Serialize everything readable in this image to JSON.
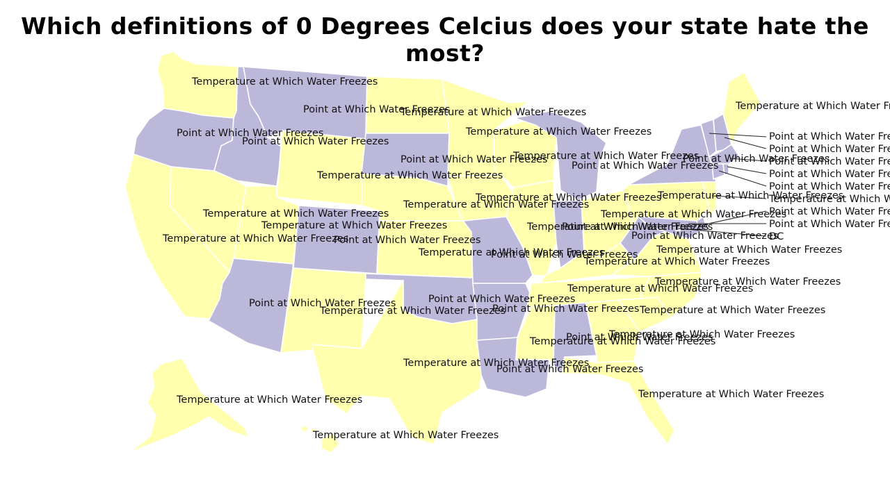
{
  "title": "Which definitions of 0 Degrees Celcius does your state hate the most?",
  "colors": {
    "Temperature at Which Water Freezes": "#ffffad",
    "Point at Which Water Freezes": "#bbb8da",
    "border": "#ffffff"
  },
  "states": {
    "WA": "Temperature at Which Water Freezes",
    "OR": "Point at Which Water Freezes",
    "CA": "Temperature at Which Water Freezes",
    "ID": "Point at Which Water Freezes",
    "NV": "Temperature at Which Water Freezes",
    "MT": "Point at Which Water Freezes",
    "WY": "Temperature at Which Water Freezes",
    "UT": "Temperature at Which Water Freezes",
    "AZ": "Point at Which Water Freezes",
    "CO": "Point at Which Water Freezes",
    "NM": "Temperature at Which Water Freezes",
    "ND": "Temperature at Which Water Freezes",
    "SD": "Point at Which Water Freezes",
    "NE": "Temperature at Which Water Freezes",
    "KS": "Temperature at Which Water Freezes",
    "OK": "Point at Which Water Freezes",
    "TX": "Temperature at Which Water Freezes",
    "MN": "Temperature at Which Water Freezes",
    "IA": "Temperature at Which Water Freezes",
    "MO": "Point at Which Water Freezes",
    "AR": "Point at Which Water Freezes",
    "LA": "Point at Which Water Freezes",
    "WI": "Temperature at Which Water Freezes",
    "IL": "Temperature at Which Water Freezes",
    "MI": "Point at Which Water Freezes",
    "IN": "Point at Which Water Freezes",
    "OH": "Temperature at Which Water Freezes",
    "KY": "Temperature at Which Water Freezes",
    "TN": "Temperature at Which Water Freezes",
    "MS": "Temperature at Which Water Freezes",
    "AL": "Point at Which Water Freezes",
    "GA": "Temperature at Which Water Freezes",
    "FL": "Temperature at Which Water Freezes",
    "SC": "Temperature at Which Water Freezes",
    "NC": "Temperature at Which Water Freezes",
    "VA": "Temperature at Which Water Freezes",
    "WV": "Point at Which Water Freezes",
    "PA": "Temperature at Which Water Freezes",
    "NY": "Point at Which Water Freezes",
    "VT": "Point at Which Water Freezes",
    "NH": "Point at Which Water Freezes",
    "ME": "Temperature at Which Water Freezes",
    "MA": "Point at Which Water Freezes",
    "RI": "Point at Which Water Freezes",
    "CT": "Point at Which Water Freezes",
    "NJ": "Temperature at Which Water Freezes",
    "DE": "Point at Which Water Freezes",
    "MD": "Point at Which Water Freezes",
    "DC": "Point at Which Water Freezes",
    "AK": "Temperature at Which Water Freezes",
    "HI": "Temperature at Which Water Freezes"
  },
  "extra_labels": {
    "DC": "DC"
  }
}
